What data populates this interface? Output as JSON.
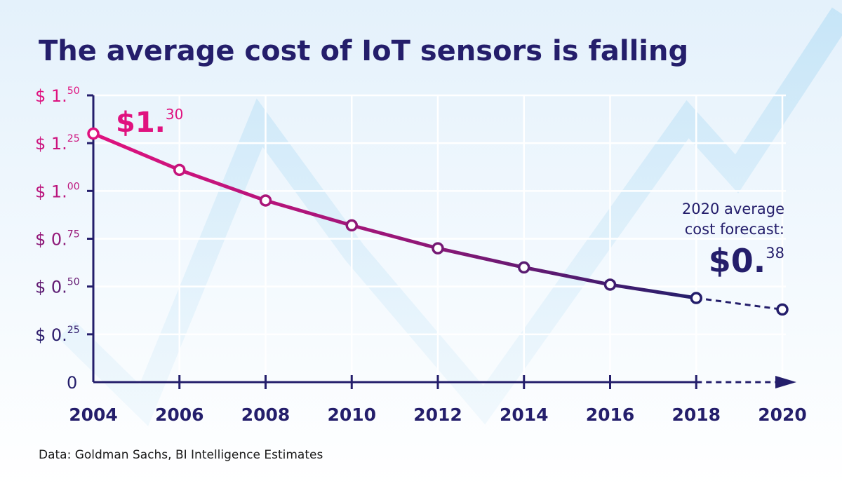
{
  "colors": {
    "title": "#241e6b",
    "axis": "#241e6b",
    "line_start": "#e0127f",
    "line_end": "#241e6b",
    "grid": "#ffffff",
    "background_wave": "#cde8f8",
    "background_top": "#e6f2fc"
  },
  "source_note": "Data: Goldman Sachs, BI Intelligence Estimates",
  "chart_data": {
    "type": "line",
    "title": "The average cost of IoT sensors is falling",
    "xlabel": "",
    "ylabel": "",
    "x_ticks": [
      "2004",
      "2006",
      "2008",
      "2010",
      "2012",
      "2014",
      "2016",
      "2018",
      "2020"
    ],
    "y_ticks": [
      {
        "value": 1.5,
        "prefix": "$ 1.",
        "sup": "50"
      },
      {
        "value": 1.25,
        "prefix": "$ 1.",
        "sup": "25"
      },
      {
        "value": 1.0,
        "prefix": "$ 1.",
        "sup": "00"
      },
      {
        "value": 0.75,
        "prefix": "$ 0.",
        "sup": "75"
      },
      {
        "value": 0.5,
        "prefix": "$ 0.",
        "sup": "50"
      },
      {
        "value": 0.25,
        "prefix": "$ 0.",
        "sup": "25"
      },
      {
        "value": 0,
        "prefix": "0",
        "sup": ""
      }
    ],
    "xlim": [
      2004,
      2020
    ],
    "ylim": [
      0,
      1.5
    ],
    "grid": true,
    "series": [
      {
        "x": [
          2004,
          2006,
          2008,
          2010,
          2012,
          2014,
          2016,
          2018
        ],
        "y": [
          1.3,
          1.11,
          0.95,
          0.82,
          0.7,
          0.6,
          0.51,
          0.44
        ]
      }
    ],
    "forecast": {
      "x": [
        2018,
        2020
      ],
      "y": [
        0.44,
        0.38
      ]
    },
    "annotations": {
      "start": {
        "prefix": "$1.",
        "sup": "30"
      },
      "forecast_line1": "2020 average",
      "forecast_line2": "cost forecast:",
      "forecast_value": {
        "prefix": "$0.",
        "sup": "38"
      }
    }
  }
}
